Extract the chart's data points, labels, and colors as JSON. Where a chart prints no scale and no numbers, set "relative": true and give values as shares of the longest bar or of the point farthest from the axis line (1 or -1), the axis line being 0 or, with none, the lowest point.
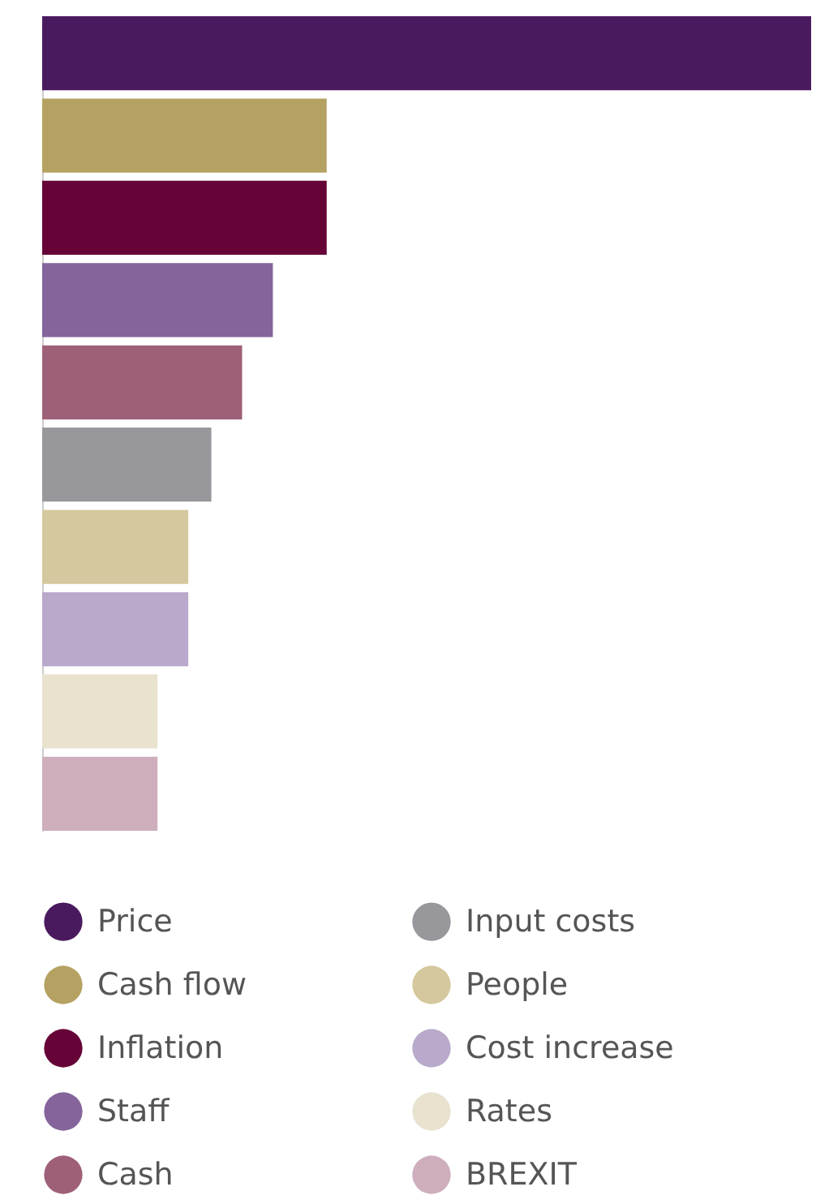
{
  "chart_data": {
    "type": "bar",
    "orientation": "horizontal",
    "relative": true,
    "legend": "bottom",
    "tick_labels": false,
    "categories": [
      null
    ],
    "series": [
      {
        "name": "Price",
        "color": "#4a1a5e",
        "values": [
          1
        ]
      },
      {
        "name": "Cash flow",
        "color": "#b5a262",
        "values": [
          0.37
        ]
      },
      {
        "name": "Inflation",
        "color": "#660437",
        "values": [
          0.37
        ]
      },
      {
        "name": "Staff",
        "color": "#84649a",
        "values": [
          0.3
        ]
      },
      {
        "name": "Cash",
        "color": "#9e6078",
        "values": [
          0.26
        ]
      },
      {
        "name": "Input costs",
        "color": "#97979c",
        "values": [
          0.22
        ]
      },
      {
        "name": "People",
        "color": "#d5c89e",
        "values": [
          0.19
        ]
      },
      {
        "name": "Cost increase",
        "color": "#b9a9cb",
        "values": [
          0.19
        ]
      },
      {
        "name": "Rates",
        "color": "#e8e2ce",
        "values": [
          0.15
        ]
      },
      {
        "name": "BREXIT",
        "color": "#ceaebd",
        "values": [
          0.15
        ]
      }
    ]
  }
}
